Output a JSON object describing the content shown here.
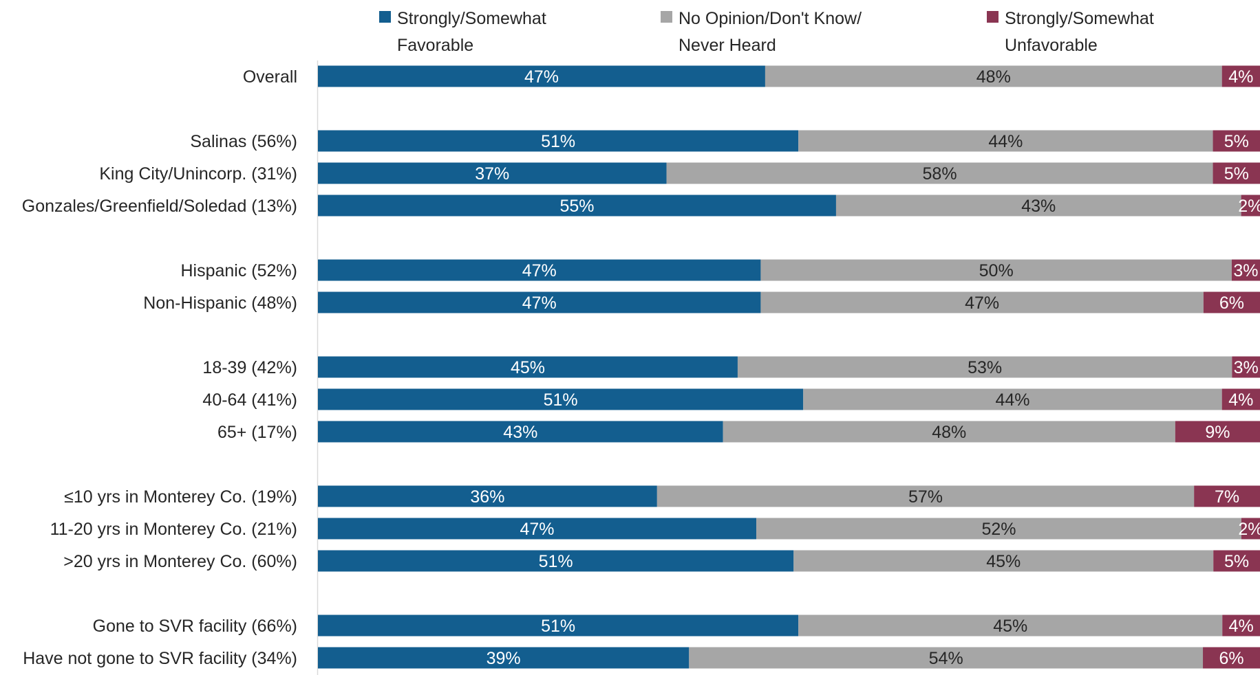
{
  "chart_data": {
    "type": "bar",
    "orientation": "horizontal",
    "stacked": true,
    "percent_stacked": true,
    "xlim": [
      0,
      100
    ],
    "grid": false,
    "legend_position": "top",
    "colors": {
      "favorable": "#135E8F",
      "neutral": "#A6A6A6",
      "unfavorable": "#8A3552",
      "axis": "#D9D9D9"
    },
    "legend": [
      {
        "key": "favorable",
        "lines": [
          "Strongly/Somewhat",
          "Favorable"
        ]
      },
      {
        "key": "neutral",
        "lines": [
          "No Opinion/Don't Know/",
          "Never Heard"
        ]
      },
      {
        "key": "unfavorable",
        "lines": [
          "Strongly/Somewhat",
          "Unfavorable"
        ]
      }
    ],
    "rows": [
      {
        "label": "Overall",
        "group": 0,
        "values": [
          47,
          48,
          4
        ],
        "value_labels": [
          "47%",
          "48%",
          "4%"
        ]
      },
      {
        "label": "Salinas (56%)",
        "group": 1,
        "values": [
          51,
          44,
          5
        ],
        "value_labels": [
          "51%",
          "44%",
          "5%"
        ]
      },
      {
        "label": "King City/Unincorp. (31%)",
        "group": 1,
        "values": [
          37,
          58,
          5
        ],
        "value_labels": [
          "37%",
          "58%",
          "5%"
        ]
      },
      {
        "label": "Gonzales/Greenfield/Soledad (13%)",
        "group": 1,
        "values": [
          55,
          43,
          2
        ],
        "value_labels": [
          "55%",
          "43%",
          "2%"
        ]
      },
      {
        "label": "Hispanic (52%)",
        "group": 2,
        "values": [
          47,
          50,
          3
        ],
        "value_labels": [
          "47%",
          "50%",
          "3%"
        ]
      },
      {
        "label": "Non-Hispanic (48%)",
        "group": 2,
        "values": [
          47,
          47,
          6
        ],
        "value_labels": [
          "47%",
          "47%",
          "6%"
        ]
      },
      {
        "label": "18-39 (42%)",
        "group": 3,
        "values": [
          45,
          53,
          3
        ],
        "value_labels": [
          "45%",
          "53%",
          "3%"
        ]
      },
      {
        "label": "40-64 (41%)",
        "group": 3,
        "values": [
          51,
          44,
          4
        ],
        "value_labels": [
          "51%",
          "44%",
          "4%"
        ]
      },
      {
        "label": "65+ (17%)",
        "group": 3,
        "values": [
          43,
          48,
          9
        ],
        "value_labels": [
          "43%",
          "48%",
          "9%"
        ]
      },
      {
        "label": "≤10 yrs in Monterey Co. (19%)",
        "group": 4,
        "values": [
          36,
          57,
          7
        ],
        "value_labels": [
          "36%",
          "57%",
          "7%"
        ]
      },
      {
        "label": "11-20 yrs in Monterey Co. (21%)",
        "group": 4,
        "values": [
          47,
          52,
          2
        ],
        "value_labels": [
          "47%",
          "52%",
          "2%"
        ]
      },
      {
        "label": ">20 yrs in Monterey Co. (60%)",
        "group": 4,
        "values": [
          51,
          45,
          5
        ],
        "value_labels": [
          "51%",
          "45%",
          "5%"
        ]
      },
      {
        "label": "Gone to SVR facility (66%)",
        "group": 5,
        "values": [
          51,
          45,
          4
        ],
        "value_labels": [
          "51%",
          "45%",
          "4%"
        ]
      },
      {
        "label": "Have not gone to SVR facility (34%)",
        "group": 5,
        "values": [
          39,
          54,
          6
        ],
        "value_labels": [
          "39%",
          "54%",
          "6%"
        ]
      }
    ]
  }
}
